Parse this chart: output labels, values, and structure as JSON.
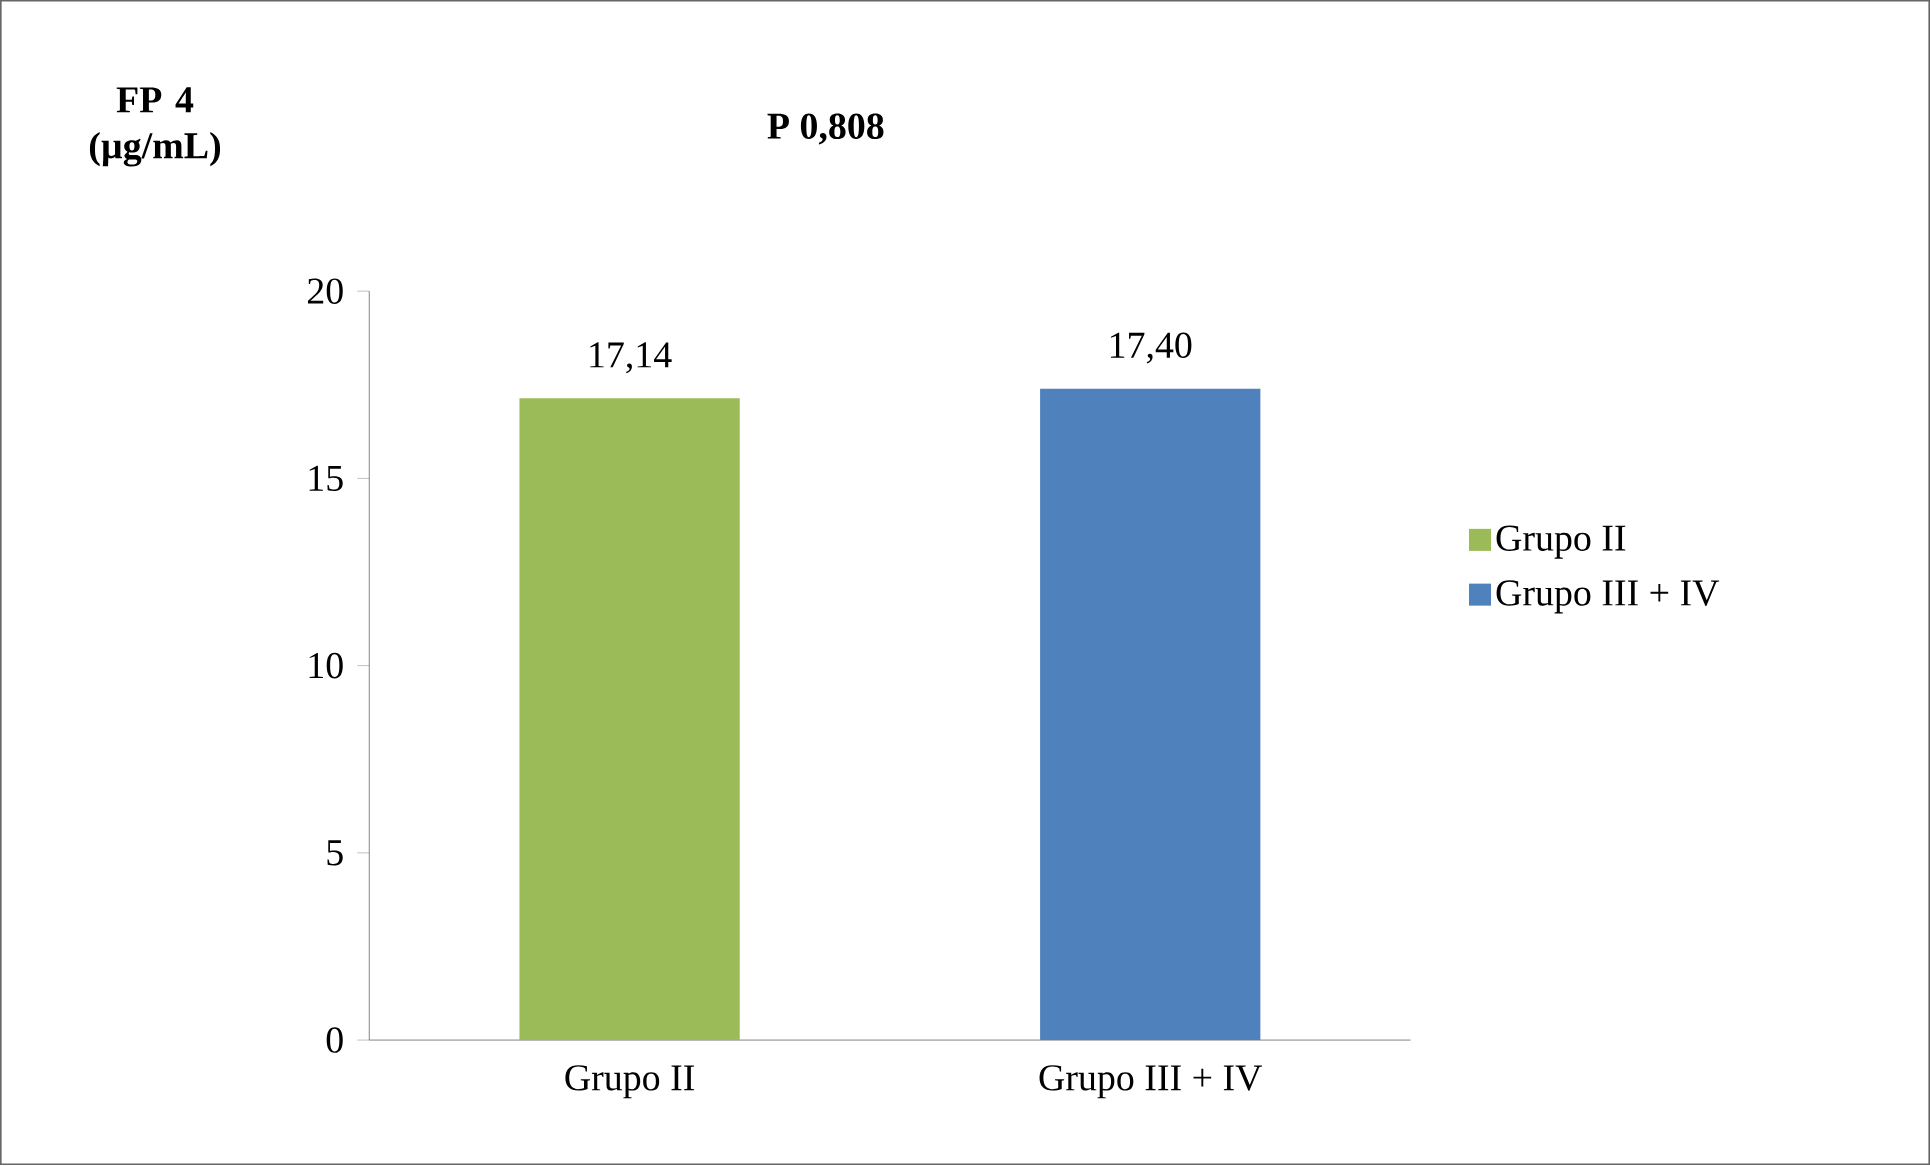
{
  "chart_data": {
    "type": "bar",
    "title": "P 0,808",
    "ylabel": "FP 4 (µg/mL)",
    "categories": [
      "Grupo II",
      "Grupo III + IV"
    ],
    "series": [
      {
        "name": "Grupo II",
        "color": "#9bbb59",
        "values": [
          17.14,
          null
        ],
        "value_labels": [
          "17,14",
          null
        ]
      },
      {
        "name": "Grupo III + IV",
        "color": "#4f81bd",
        "values": [
          null,
          17.4
        ],
        "value_labels": [
          null,
          "17,40"
        ]
      }
    ],
    "ylim": [
      0,
      20
    ],
    "yticks": [
      0,
      5,
      10,
      15,
      20
    ],
    "legend": "right",
    "grid": false
  }
}
